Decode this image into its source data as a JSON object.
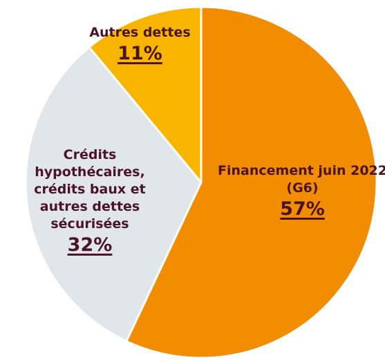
{
  "chart_data": {
    "type": "pie",
    "categories": [
      "Financement juin 2022 (G6)",
      "Crédits hypothécaires, crédits baux et autres dettes sécurisées",
      "Autres dettes"
    ],
    "values": [
      57,
      32,
      11
    ],
    "value_labels": [
      "57%",
      "32%",
      "11%"
    ],
    "colors": [
      "#f28c00",
      "#e1e6ea",
      "#f7b500"
    ]
  }
}
